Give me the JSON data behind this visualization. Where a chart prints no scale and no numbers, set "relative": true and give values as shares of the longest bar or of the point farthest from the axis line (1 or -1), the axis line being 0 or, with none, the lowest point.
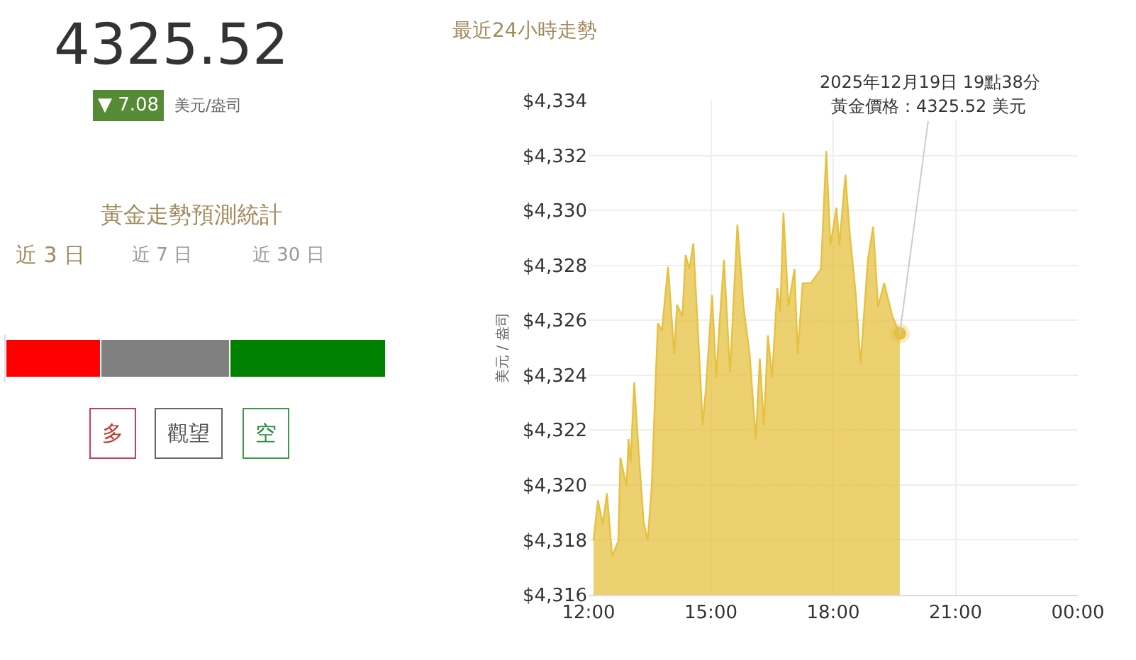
{
  "chart_data": [
    {
      "type": "other",
      "annotations": [
        "4325.52",
        "▼ 7.08",
        "美元/盎司"
      ]
    },
    {
      "type": "bar",
      "title": "黃金走勢預測統計",
      "orientation": "horizontal",
      "stacked": true,
      "relative": true,
      "categories": [
        null
      ],
      "series": [
        {
          "color": "#ff0000",
          "values": [
            0.25
          ]
        },
        {
          "color": "#808080",
          "values": [
            0.34
          ]
        },
        {
          "color": "#008000",
          "values": [
            0.41
          ]
        }
      ],
      "annotations": [
        "近 3 日",
        "近 7 日",
        "近 30 日",
        "多",
        "觀望",
        "空"
      ]
    },
    {
      "type": "area",
      "title": "最近24小時走勢",
      "ylabel": "美元 / 盎司",
      "grid": true,
      "x": [
        12.12,
        12.23,
        12.35,
        12.45,
        12.58,
        12.73,
        12.78,
        12.93,
        12.98,
        13.03,
        13.12,
        13.23,
        13.35,
        13.45,
        13.55,
        13.63,
        13.7,
        13.8,
        13.95,
        14.1,
        14.17,
        14.3,
        14.38,
        14.47,
        14.57,
        14.7,
        14.8,
        14.88,
        15.03,
        15.13,
        15.2,
        15.32,
        15.47,
        15.65,
        15.8,
        15.95,
        16.1,
        16.2,
        16.3,
        16.4,
        16.5,
        16.63,
        16.7,
        16.78,
        16.9,
        17.05,
        17.13,
        17.25,
        17.45,
        17.7,
        17.83,
        17.93,
        18.08,
        18.15,
        18.3,
        18.4,
        18.55,
        18.67,
        18.85,
        18.98,
        19.1,
        19.25,
        19.45,
        19.633
      ],
      "series": [
        {
          "color": "#e6c140",
          "values": [
            4317.97,
            4319.44,
            4318.58,
            4319.7,
            4317.4,
            4317.97,
            4321.0,
            4319.96,
            4321.67,
            4320.8,
            4323.74,
            4321.16,
            4318.67,
            4317.97,
            4319.96,
            4323.22,
            4325.89,
            4325.63,
            4327.95,
            4324.77,
            4326.57,
            4326.14,
            4328.38,
            4327.86,
            4328.8,
            4325.11,
            4322.19,
            4323.56,
            4326.92,
            4323.9,
            4325.63,
            4328.2,
            4324.08,
            4329.49,
            4326.49,
            4324.77,
            4321.67,
            4324.6,
            4322.19,
            4325.45,
            4323.9,
            4327.17,
            4326.31,
            4329.92,
            4326.49,
            4327.86,
            4324.77,
            4327.35,
            4327.35,
            4327.86,
            4332.16,
            4328.73,
            4330.1,
            4328.73,
            4331.3,
            4329.24,
            4327.0,
            4324.42,
            4328.2,
            4329.41,
            4326.49,
            4327.35,
            4326.14,
            4325.52
          ]
        }
      ],
      "xlim": [
        12,
        24
      ],
      "xticks": [
        {
          "value": 12,
          "label": "12:00"
        },
        {
          "value": 15,
          "label": "15:00"
        },
        {
          "value": 18,
          "label": "18:00"
        },
        {
          "value": 21,
          "label": "21:00"
        },
        {
          "value": 24,
          "label": "00:00"
        }
      ],
      "ylim": [
        4316,
        4334
      ],
      "yticks": [
        {
          "value": 4316,
          "label": "$4,316"
        },
        {
          "value": 4318,
          "label": "$4,318"
        },
        {
          "value": 4320,
          "label": "$4,320"
        },
        {
          "value": 4322,
          "label": "$4,322"
        },
        {
          "value": 4324,
          "label": "$4,324"
        },
        {
          "value": 4326,
          "label": "$4,326"
        },
        {
          "value": 4328,
          "label": "$4,328"
        },
        {
          "value": 4330,
          "label": "$4,330"
        },
        {
          "value": 4332,
          "label": "$4,332"
        },
        {
          "value": 4334,
          "label": "$4,334"
        }
      ],
      "annotations": [
        "2025年12月19日 19點38分",
        {
          "text": "黃金價格：4325.52 美元",
          "x": 19.633,
          "y": 4325.52
        }
      ]
    }
  ]
}
